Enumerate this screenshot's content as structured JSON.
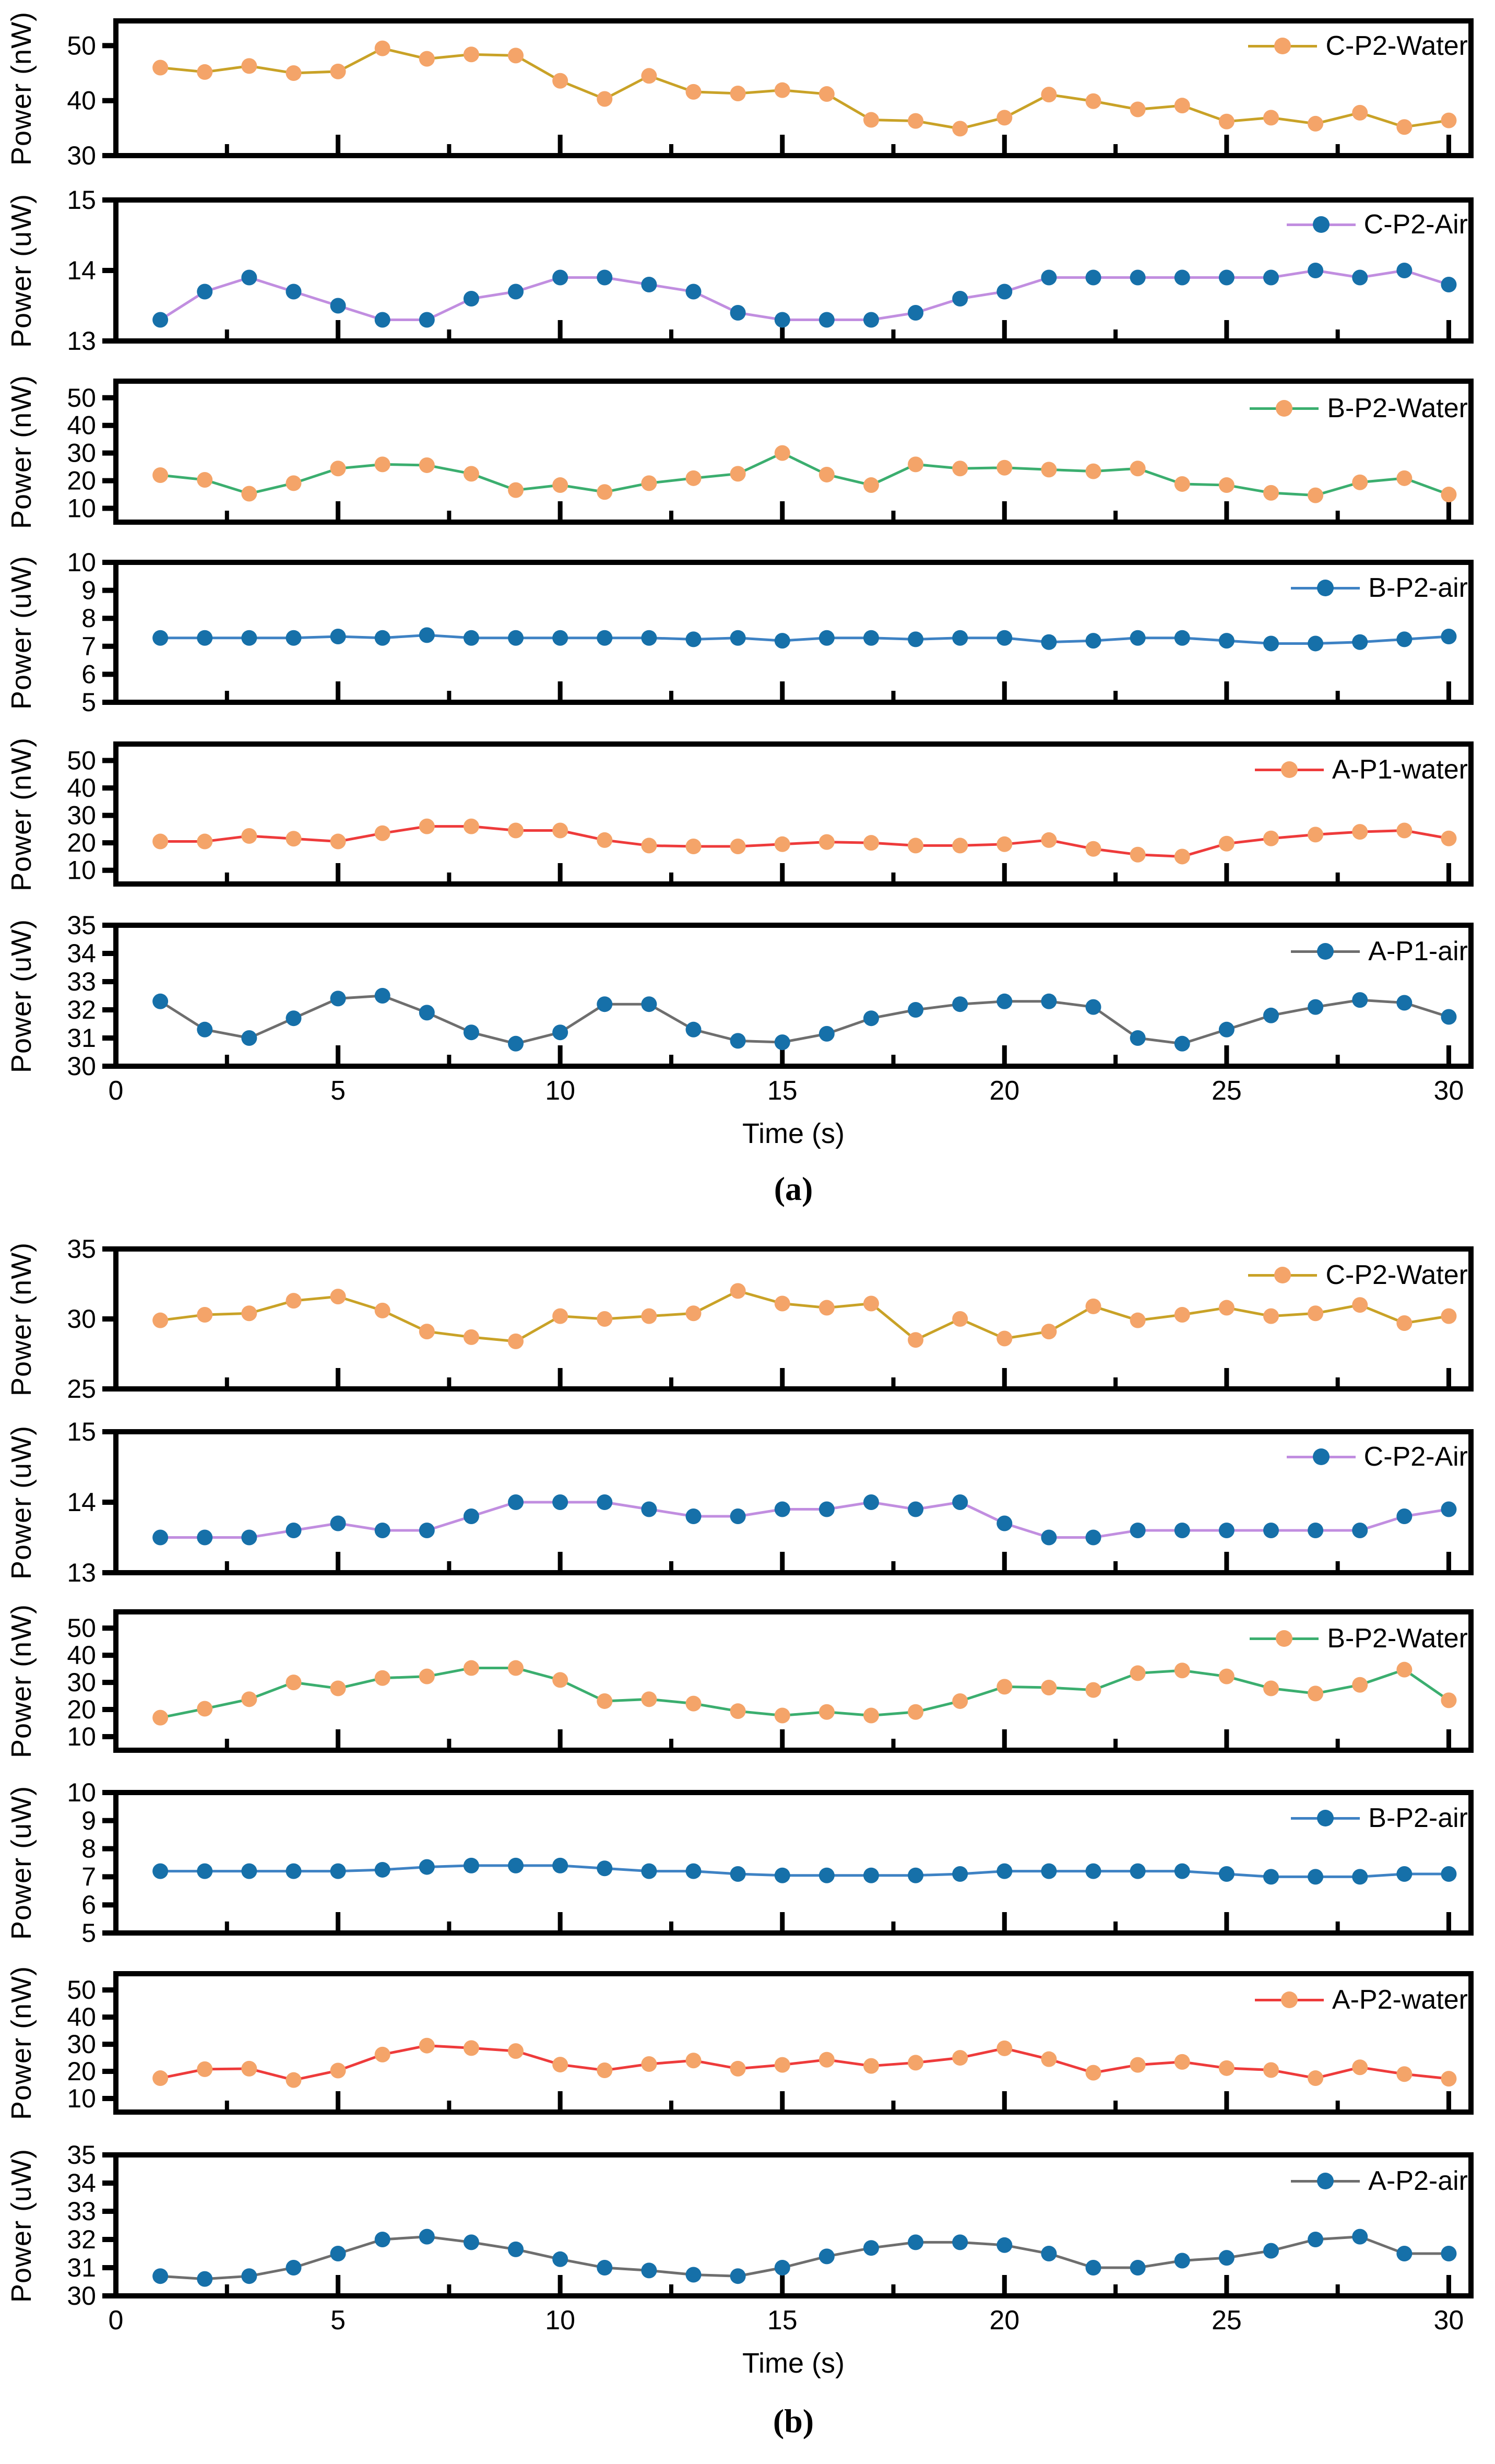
{
  "chart_data": {
    "type": "line",
    "x_label": "Time (s)",
    "x_values": [
      1,
      2,
      3,
      4,
      5,
      6,
      7,
      8,
      9,
      10,
      11,
      12,
      13,
      14,
      15,
      16,
      17,
      18,
      19,
      20,
      21,
      22,
      23,
      24,
      25,
      26,
      27,
      28,
      29,
      30
    ],
    "x_ticks": [
      0,
      5,
      10,
      15,
      20,
      25,
      30
    ],
    "x_minor_ticks": [
      2.5,
      7.5,
      12.5,
      17.5,
      22.5,
      27.5
    ],
    "x_lim": [
      0,
      30.5
    ],
    "grid": false,
    "legend_position": "top-right",
    "panels": [
      {
        "caption": "(a)",
        "charts": [
          {
            "legend": "C-P2-Water",
            "ylabel": "Power (nW)",
            "yticks": [
              30,
              40,
              50
            ],
            "ylim": [
              30,
              54.5
            ],
            "line_color": "#C9A227",
            "marker_color": "#F4A469",
            "values": [
              46,
              45.2,
              46.3,
              45,
              45.3,
              49.5,
              47.6,
              48.4,
              48.2,
              43.6,
              40.3,
              44.5,
              41.6,
              41.3,
              41.9,
              41.2,
              36.5,
              36.3,
              34.9,
              36.9,
              41.1,
              39.9,
              38.4,
              39.1,
              36.2,
              36.9,
              35.8,
              37.8,
              35.2,
              36.4
            ]
          },
          {
            "legend": "C-P2-Air",
            "ylabel": "Power (uW)",
            "yticks": [
              13,
              14,
              15
            ],
            "ylim": [
              13,
              15
            ],
            "line_color": "#C18EE0",
            "marker_color": "#1670A9",
            "values": [
              13.3,
              13.7,
              13.9,
              13.7,
              13.5,
              13.3,
              13.3,
              13.6,
              13.7,
              13.9,
              13.9,
              13.8,
              13.7,
              13.4,
              13.3,
              13.3,
              13.3,
              13.4,
              13.6,
              13.7,
              13.9,
              13.9,
              13.9,
              13.9,
              13.9,
              13.9,
              14,
              13.9,
              14,
              13.8
            ]
          },
          {
            "legend": "B-P2-Water",
            "ylabel": "Power (nW)",
            "yticks": [
              10,
              20,
              30,
              40,
              50
            ],
            "ylim": [
              5,
              56
            ],
            "line_color": "#3BAE6F",
            "marker_color": "#F4A469",
            "values": [
              22,
              20.3,
              15.3,
              19.1,
              24.4,
              25.9,
              25.6,
              22.5,
              16.6,
              18.4,
              15.9,
              19.1,
              20.9,
              22.5,
              30,
              22.2,
              18.4,
              25.9,
              24.4,
              24.7,
              24,
              23.4,
              24.4,
              18.8,
              18.4,
              15.6,
              14.7,
              19.4,
              20.9,
              15
            ]
          },
          {
            "legend": "B-P2-air",
            "ylabel": "Power (uW)",
            "yticks": [
              5,
              6,
              7,
              8,
              9,
              10
            ],
            "ylim": [
              5,
              10
            ],
            "line_color": "#3E82C4",
            "marker_color": "#1670A9",
            "values": [
              7.3,
              7.3,
              7.3,
              7.3,
              7.35,
              7.3,
              7.4,
              7.3,
              7.3,
              7.3,
              7.3,
              7.3,
              7.25,
              7.3,
              7.2,
              7.3,
              7.3,
              7.25,
              7.3,
              7.3,
              7.15,
              7.2,
              7.3,
              7.3,
              7.2,
              7.1,
              7.1,
              7.15,
              7.25,
              7.35
            ]
          },
          {
            "legend": "A-P1-water",
            "ylabel": "Power (nW)",
            "yticks": [
              10,
              20,
              30,
              40,
              50
            ],
            "ylim": [
              5,
              56
            ],
            "line_color": "#EE3B3B",
            "marker_color": "#F4A469",
            "values": [
              20.5,
              20.5,
              22.5,
              21.5,
              20.5,
              23.5,
              26,
              26,
              24.5,
              24.5,
              21,
              19,
              18.7,
              18.7,
              19.5,
              20.3,
              20,
              19,
              19,
              19.5,
              21,
              17.8,
              15.7,
              15,
              19.7,
              21.6,
              23,
              24,
              24.5,
              21.6
            ]
          },
          {
            "legend": "A-P1-air",
            "ylabel": "Power (uW)",
            "yticks": [
              30,
              31,
              32,
              33,
              34,
              35
            ],
            "ylim": [
              30,
              35
            ],
            "line_color": "#6E6E6E",
            "marker_color": "#1670A9",
            "values": [
              32.3,
              31.3,
              31,
              31.7,
              32.4,
              32.5,
              31.9,
              31.2,
              30.8,
              31.2,
              32.2,
              32.2,
              31.3,
              30.9,
              30.85,
              31.15,
              31.7,
              32,
              32.2,
              32.3,
              32.3,
              32.1,
              31,
              30.8,
              31.3,
              31.8,
              32.1,
              32.35,
              32.25,
              31.75
            ]
          }
        ]
      },
      {
        "caption": "(b)",
        "charts": [
          {
            "legend": "C-P2-Water",
            "ylabel": "Power (nW)",
            "yticks": [
              25,
              30,
              35
            ],
            "ylim": [
              25,
              35
            ],
            "line_color": "#C9A227",
            "marker_color": "#F4A469",
            "values": [
              29.9,
              30.3,
              30.4,
              31.3,
              31.6,
              30.6,
              29.1,
              28.7,
              28.4,
              30.2,
              30,
              30.2,
              30.4,
              32,
              31.1,
              30.8,
              31.1,
              28.5,
              30,
              28.6,
              29.1,
              30.9,
              29.9,
              30.3,
              30.8,
              30.2,
              30.4,
              31,
              29.7,
              30.2
            ]
          },
          {
            "legend": "C-P2-Air",
            "ylabel": "Power (uW)",
            "yticks": [
              13,
              14,
              15
            ],
            "ylim": [
              13,
              15
            ],
            "line_color": "#C18EE0",
            "marker_color": "#1670A9",
            "values": [
              13.5,
              13.5,
              13.5,
              13.6,
              13.7,
              13.6,
              13.6,
              13.8,
              14,
              14,
              14,
              13.9,
              13.8,
              13.8,
              13.9,
              13.9,
              14,
              13.9,
              14,
              13.7,
              13.5,
              13.5,
              13.6,
              13.6,
              13.6,
              13.6,
              13.6,
              13.6,
              13.8,
              13.9
            ]
          },
          {
            "legend": "B-P2-Water",
            "ylabel": "Power (nW)",
            "yticks": [
              10,
              20,
              30,
              40,
              50
            ],
            "ylim": [
              5,
              56
            ],
            "line_color": "#3BAE6F",
            "marker_color": "#F4A469",
            "values": [
              17,
              20.3,
              23.8,
              30,
              27.8,
              31.6,
              32.2,
              35.3,
              35.3,
              30.9,
              23.1,
              23.8,
              22.2,
              19.4,
              17.8,
              19.1,
              17.8,
              19.1,
              23.1,
              28.4,
              28.1,
              27.2,
              33.4,
              34.4,
              32.2,
              27.8,
              25.9,
              29.1,
              34.7,
              23.4
            ]
          },
          {
            "legend": "B-P2-air",
            "ylabel": "Power (uW)",
            "yticks": [
              5,
              6,
              7,
              8,
              9,
              10
            ],
            "ylim": [
              5,
              10
            ],
            "line_color": "#3E82C4",
            "marker_color": "#1670A9",
            "values": [
              7.2,
              7.2,
              7.2,
              7.2,
              7.2,
              7.25,
              7.35,
              7.4,
              7.4,
              7.4,
              7.3,
              7.2,
              7.2,
              7.1,
              7.05,
              7.05,
              7.05,
              7.05,
              7.1,
              7.2,
              7.2,
              7.2,
              7.2,
              7.2,
              7.1,
              7,
              7,
              7,
              7.1,
              7.1
            ]
          },
          {
            "legend": "A-P2-water",
            "ylabel": "Power (nW)",
            "yticks": [
              10,
              20,
              30,
              40,
              50
            ],
            "ylim": [
              5,
              56
            ],
            "line_color": "#EE3B3B",
            "marker_color": "#F4A469",
            "values": [
              17.5,
              20.8,
              21,
              16.8,
              20.3,
              26.2,
              29.5,
              28.6,
              27.5,
              22.5,
              20.4,
              22.7,
              24,
              21,
              22.4,
              24.3,
              22,
              23.2,
              25,
              28.5,
              24.5,
              19.5,
              22.4,
              23.5,
              21.2,
              20.5,
              17.5,
              21.5,
              19,
              17.3
            ]
          },
          {
            "legend": "A-P2-air",
            "ylabel": "Power (uW)",
            "yticks": [
              30,
              31,
              32,
              33,
              34,
              35
            ],
            "ylim": [
              30,
              35
            ],
            "line_color": "#6E6E6E",
            "marker_color": "#1670A9",
            "values": [
              30.7,
              30.6,
              30.7,
              31,
              31.5,
              32,
              32.1,
              31.9,
              31.65,
              31.3,
              31,
              30.9,
              30.75,
              30.7,
              31,
              31.4,
              31.7,
              31.9,
              31.9,
              31.8,
              31.5,
              31,
              31,
              31.25,
              31.35,
              31.6,
              32,
              32.1,
              31.5,
              31.5
            ]
          }
        ]
      }
    ]
  }
}
